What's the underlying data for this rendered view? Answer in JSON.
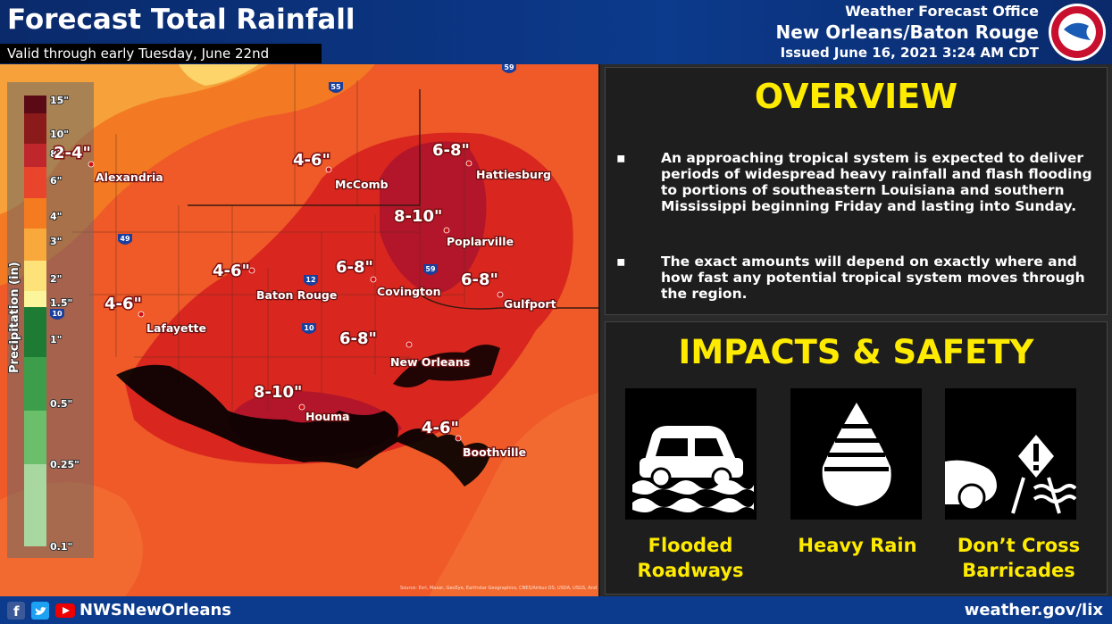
{
  "header": {
    "title": "Forecast Total Rainfall",
    "subtitle": "Valid through early Tuesday, June 22nd",
    "office": "Weather Forecast Office",
    "region": "New Orleans/Baton Rouge",
    "issued": "Issued June 16, 2021 3:24 AM CDT"
  },
  "map": {
    "cities": [
      "Alexandria",
      "McComb",
      "Hattiesburg",
      "Poplarville",
      "Baton Rouge",
      "Covington",
      "Gulfport",
      "Lafayette",
      "New Orleans",
      "Houma",
      "Boothville"
    ],
    "amounts": [
      "2-4\"",
      "4-6\"",
      "6-8\"",
      "8-10\"",
      "4-6\"",
      "6-8\"",
      "6-8\"",
      "4-6\"",
      "6-8\"",
      "8-10\"",
      "4-6\""
    ],
    "interstates": [
      "55",
      "59",
      "49",
      "12",
      "59",
      "10",
      "10"
    ],
    "source": "Source: Esri, Maxar, GeoEye, Earthstar Geographics, CNES/Airbus DS, USDA, USGS, And"
  },
  "legend": {
    "title": "Precipitation (in)",
    "labels": [
      "15\"",
      "10\"",
      "8\"",
      "6\"",
      "4\"",
      "3\"",
      "2\"",
      "1.5\"",
      "1\"",
      "0.5\"",
      "0.25\"",
      "0.1\""
    ]
  },
  "overview": {
    "heading": "OVERVIEW",
    "bullets": [
      "An approaching tropical system is expected to deliver periods of widespread heavy rainfall and flash flooding to portions of southeastern Louisiana and southern Mississippi beginning Friday and lasting into Sunday.",
      "The exact amounts will depend on exactly where and how fast any potential tropical system moves through the region."
    ]
  },
  "impacts": {
    "heading": "IMPACTS & SAFETY",
    "items": [
      "Flooded Roadways",
      "Heavy Rain",
      "Don’t Cross Barricades"
    ]
  },
  "footer": {
    "handle": "NWSNewOrleans",
    "url": "weather.gov/lix"
  }
}
